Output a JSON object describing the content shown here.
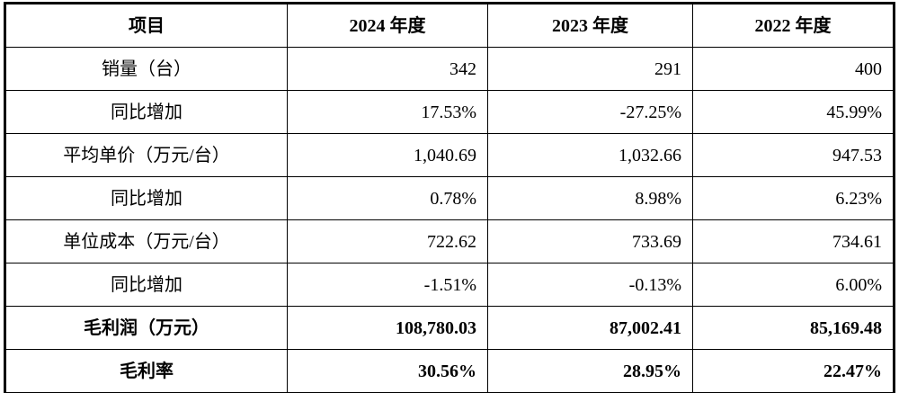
{
  "table": {
    "header": [
      "项目",
      "2024 年度",
      "2023 年度",
      "2022 年度"
    ],
    "rows": [
      {
        "label": "销量（台）",
        "values": [
          "342",
          "291",
          "400"
        ],
        "bold": false
      },
      {
        "label": "同比增加",
        "values": [
          "17.53%",
          "-27.25%",
          "45.99%"
        ],
        "bold": false
      },
      {
        "label": "平均单价（万元/台）",
        "values": [
          "1,040.69",
          "1,032.66",
          "947.53"
        ],
        "bold": false
      },
      {
        "label": "同比增加",
        "values": [
          "0.78%",
          "8.98%",
          "6.23%"
        ],
        "bold": false
      },
      {
        "label": "单位成本（万元/台）",
        "values": [
          "722.62",
          "733.69",
          "734.61"
        ],
        "bold": false
      },
      {
        "label": "同比增加",
        "values": [
          "-1.51%",
          "-0.13%",
          "6.00%"
        ],
        "bold": false
      },
      {
        "label": "毛利润（万元）",
        "values": [
          "108,780.03",
          "87,002.41",
          "85,169.48"
        ],
        "bold": true
      },
      {
        "label": "毛利率",
        "values": [
          "30.56%",
          "28.95%",
          "22.47%"
        ],
        "bold": true
      }
    ]
  }
}
